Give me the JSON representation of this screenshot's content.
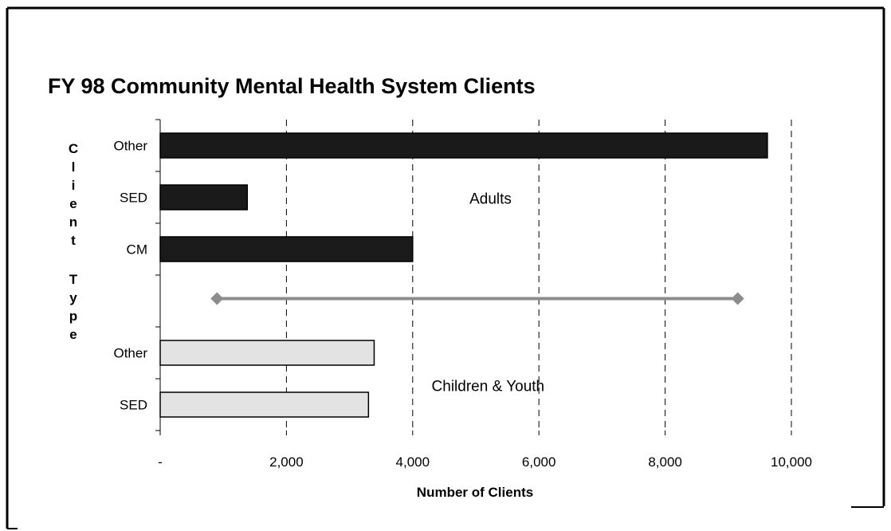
{
  "chart_data": {
    "type": "bar",
    "orientation": "horizontal",
    "title": "FY 98 Community Mental Health System Clients",
    "xlabel": "Number of Clients",
    "ylabel": "Client Type",
    "xlim": [
      0,
      10000
    ],
    "x_ticks": [
      0,
      2000,
      4000,
      6000,
      8000,
      10000
    ],
    "x_tick_labels": [
      "-",
      "2,000",
      "4,000",
      "6,000",
      "8,000",
      "10,000"
    ],
    "grid": "vertical dashed",
    "categories": [
      "Other",
      "SED",
      "CM",
      "Other",
      "SED"
    ],
    "values": [
      9620,
      1380,
      4000,
      3390,
      3300
    ],
    "groups": [
      {
        "label": "Adults",
        "color": "#1a1a1a",
        "category_indices": [
          0,
          1,
          2
        ]
      },
      {
        "label": "Children & Youth",
        "color": "#e3e3e3",
        "category_indices": [
          3,
          4
        ]
      }
    ],
    "separator": {
      "x_start": 900,
      "x_end": 9150,
      "color": "#8c8c8c"
    }
  }
}
